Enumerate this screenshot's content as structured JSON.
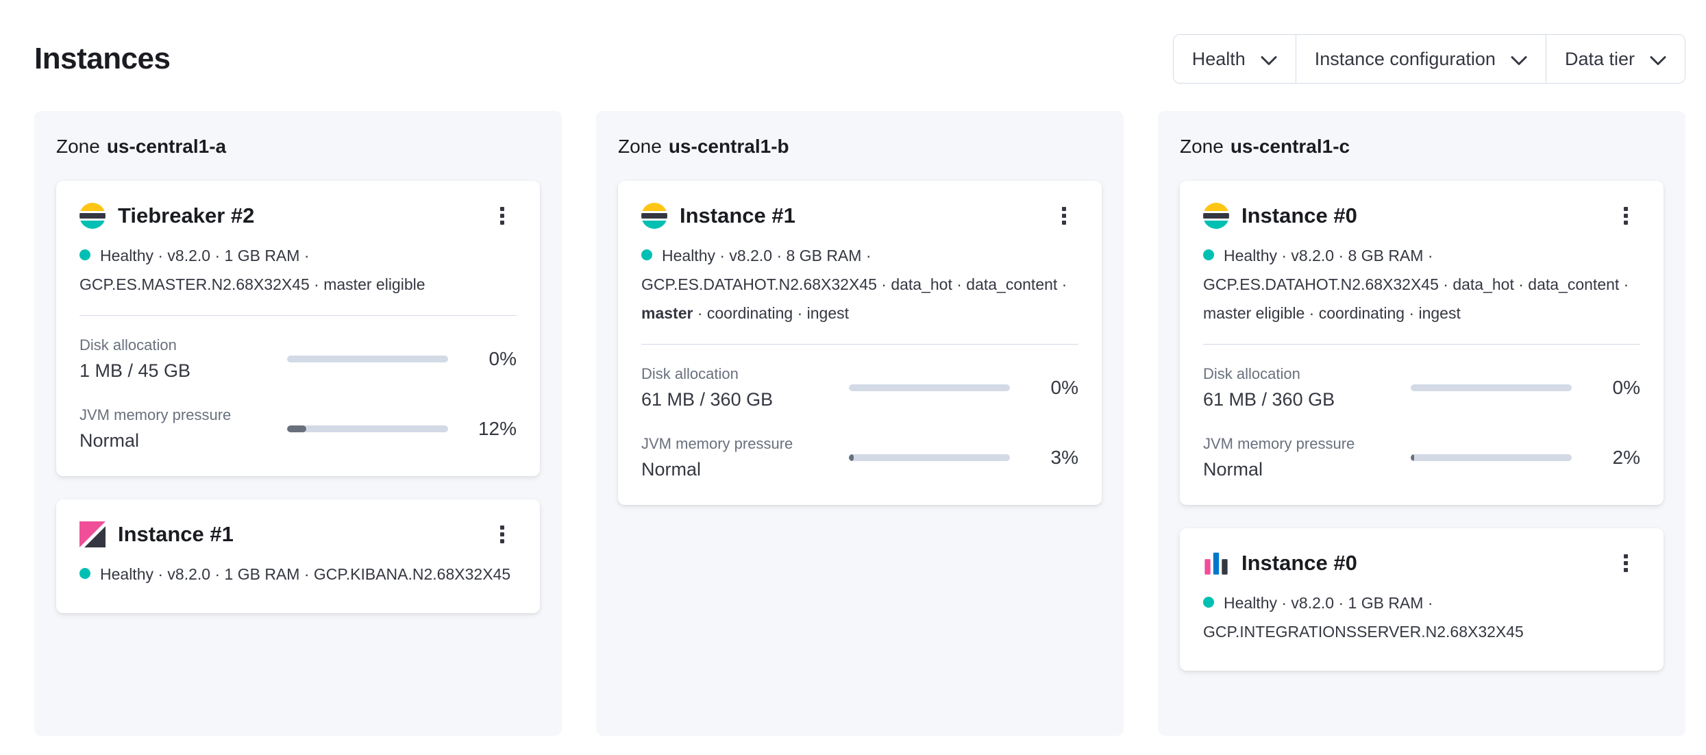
{
  "header": {
    "title": "Instances"
  },
  "filters": [
    {
      "label": "Health",
      "icon": "chevron-down-icon"
    },
    {
      "label": "Instance configuration",
      "icon": "chevron-down-icon"
    },
    {
      "label": "Data tier",
      "icon": "chevron-down-icon"
    }
  ],
  "colors": {
    "health_dot": "#00BFB3",
    "progress_track": "#D3DAE6",
    "progress_fill": "#69707D",
    "es_yellow": "#FEC514",
    "es_dark": "#343741",
    "es_teal": "#00BFB3",
    "kibana_pink": "#F04E98",
    "integrations_blue": "#0077CC",
    "integrations_pink": "#F04E98"
  },
  "zones": [
    {
      "label": "Zone",
      "name": "us-central1-a",
      "cards": [
        {
          "icon": "elasticsearch-logo",
          "title": "Tiebreaker #2",
          "status": "Healthy · v8.2.0 · 1 GB RAM · GCP.ES.MASTER.N2.68X32X45 · master eligible",
          "metrics": {
            "disk": {
              "label": "Disk allocation",
              "value": "1 MB / 45 GB",
              "percent": 0,
              "percent_label": "0%"
            },
            "jvm": {
              "label": "JVM memory pressure",
              "value": "Normal",
              "percent": 12,
              "percent_label": "12%"
            }
          }
        },
        {
          "icon": "kibana-logo",
          "title": "Instance #1",
          "status": "Healthy · v8.2.0 · 1 GB RAM · GCP.KIBANA.N2.68X32X45"
        }
      ]
    },
    {
      "label": "Zone",
      "name": "us-central1-b",
      "cards": [
        {
          "icon": "elasticsearch-logo",
          "title": "Instance #1",
          "status_pre": "Healthy · v8.2.0 · 8 GB RAM · GCP.ES.DATAHOT.N2.68X32X45 · data_hot · data_content · ",
          "status_bold": "master",
          "status_post": " · coordinating · ingest",
          "metrics": {
            "disk": {
              "label": "Disk allocation",
              "value": "61 MB / 360 GB",
              "percent": 0,
              "percent_label": "0%"
            },
            "jvm": {
              "label": "JVM memory pressure",
              "value": "Normal",
              "percent": 3,
              "percent_label": "3%"
            }
          }
        }
      ]
    },
    {
      "label": "Zone",
      "name": "us-central1-c",
      "cards": [
        {
          "icon": "elasticsearch-logo",
          "title": "Instance #0",
          "status": "Healthy · v8.2.0 · 8 GB RAM · GCP.ES.DATAHOT.N2.68X32X45 · data_hot · data_content · master eligible · coordinating · ingest",
          "metrics": {
            "disk": {
              "label": "Disk allocation",
              "value": "61 MB / 360 GB",
              "percent": 0,
              "percent_label": "0%"
            },
            "jvm": {
              "label": "JVM memory pressure",
              "value": "Normal",
              "percent": 2,
              "percent_label": "2%"
            }
          }
        },
        {
          "icon": "integrations-server-logo",
          "title": "Instance #0",
          "status": "Healthy · v8.2.0 · 1 GB RAM · GCP.INTEGRATIONSSERVER.N2.68X32X45"
        }
      ]
    }
  ]
}
